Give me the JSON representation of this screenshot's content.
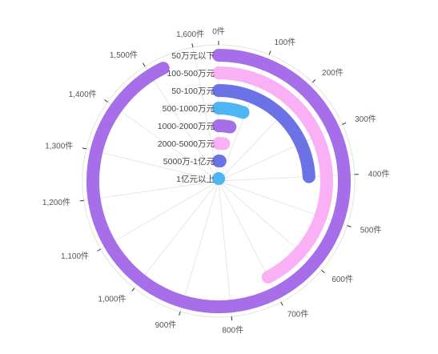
{
  "chart_data": {
    "type": "polar-bar",
    "title": "",
    "axis": {
      "min": 0,
      "max": 1650,
      "ticks": [
        0,
        100,
        200,
        300,
        400,
        500,
        600,
        700,
        800,
        900,
        1000,
        1100,
        1200,
        1300,
        1400,
        1500,
        1600
      ],
      "tick_labels": [
        "0件",
        "100件",
        "200件",
        "300件",
        "400件",
        "500件",
        "600件",
        "700件",
        "800件",
        "900件",
        "1,000件",
        "1,100件",
        "1,200件",
        "1,300件",
        "1,400件",
        "1,500件",
        "1,600件"
      ],
      "grid": true,
      "direction": "clockwise",
      "start": "top"
    },
    "categories": [
      "50万元以下",
      "100-500万元",
      "50-100万元",
      "500-1000万元",
      "1000-2000万元",
      "2000-5000万元",
      "5000万-1亿元",
      "1亿元以上"
    ],
    "values": [
      1530,
      700,
      400,
      90,
      55,
      35,
      18,
      8
    ],
    "colors": [
      "#a66ee8",
      "#f9b0f4",
      "#6a72e6",
      "#4fb6f5",
      "#a66ee8",
      "#f9b0f4",
      "#6a72e6",
      "#4fb6f5"
    ]
  }
}
